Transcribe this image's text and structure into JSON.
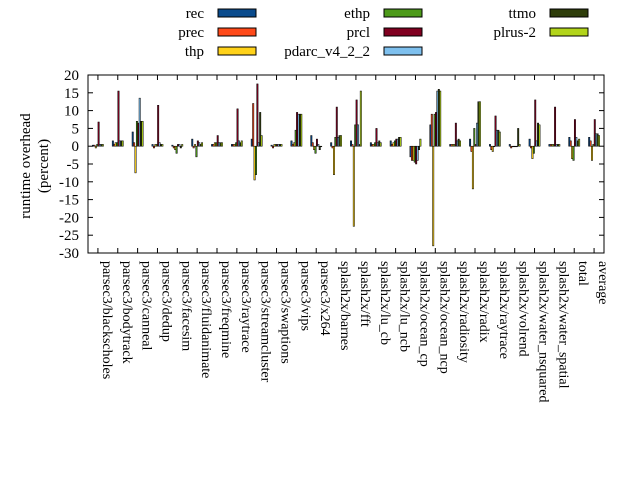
{
  "chart_data": {
    "type": "bar",
    "title": "",
    "xlabel": "",
    "ylabel": "runtime overhead",
    "ylabel_unit": "(percent)",
    "ylim": [
      -30,
      20
    ],
    "yticks": [
      -30,
      -25,
      -20,
      -15,
      -10,
      -5,
      0,
      5,
      10,
      15,
      20
    ],
    "grid": false,
    "legend_position": "top",
    "categories": [
      "parsec3/blackscholes",
      "parsec3/bodytrack",
      "parsec3/canneal",
      "parsec3/dedup",
      "parsec3/facesim",
      "parsec3/fluidanimate",
      "parsec3/freqmine",
      "parsec3/raytrace",
      "parsec3/streamcluster",
      "parsec3/swaptions",
      "parsec3/vips",
      "parsec3/x264",
      "splash2x/barnes",
      "splash2x/fft",
      "splash2x/lu_cb",
      "splash2x/lu_ncb",
      "splash2x/ocean_cp",
      "splash2x/ocean_ncp",
      "splash2x/radiosity",
      "splash2x/radix",
      "splash2x/raytrace",
      "splash2x/volrend",
      "splash2x/water_nsquared",
      "splash2x/water_spatial",
      "total",
      "average"
    ],
    "series": [
      {
        "name": "rec",
        "color": "#0a4b8c",
        "values": [
          0.3,
          1.5,
          4,
          0.5,
          0.3,
          2,
          0.5,
          0.5,
          2,
          0.3,
          1.5,
          3,
          1,
          1.5,
          1,
          1.5,
          -3,
          6,
          0.5,
          2,
          0.5,
          0.5,
          2,
          0.5,
          2.5,
          2.5
        ]
      },
      {
        "name": "prec",
        "color": "#ff4a1a",
        "values": [
          0.3,
          0.5,
          1,
          -0.5,
          -0.5,
          -0.5,
          0.5,
          0.5,
          12,
          -0.5,
          0.5,
          1,
          -0.5,
          0.5,
          0.5,
          0.5,
          -4,
          9,
          0.5,
          -1.5,
          -1,
          -0.5,
          -0.5,
          0.5,
          1.5,
          1.5
        ]
      },
      {
        "name": "thp",
        "color": "#ffd21a",
        "values": [
          -0.5,
          1,
          -7.5,
          0.5,
          -1,
          0.5,
          1,
          0.5,
          -9.5,
          0.5,
          1,
          -1,
          -8,
          -22.5,
          0.5,
          1,
          -4,
          -28,
          0.5,
          -12,
          -1.5,
          0,
          -3.5,
          0.5,
          -3.5,
          -4
        ]
      },
      {
        "name": "ethp",
        "color": "#4d9a1a",
        "values": [
          0.5,
          1,
          7,
          0.5,
          -2,
          -3,
          1,
          1,
          -8,
          0.5,
          4.5,
          -2,
          2.5,
          6,
          1,
          1.5,
          -4.5,
          9,
          0.5,
          5,
          0,
          0,
          -2,
          0.5,
          -4,
          0.5
        ]
      },
      {
        "name": "prcl",
        "color": "#800020",
        "values": [
          6.8,
          15.5,
          6.5,
          11.5,
          0.5,
          1.5,
          3,
          10.5,
          17.5,
          0.5,
          9.5,
          2,
          11,
          13,
          5,
          2,
          -5,
          9.5,
          6.5,
          0.5,
          8.5,
          0,
          13,
          11,
          7.5,
          7.5
        ]
      },
      {
        "name": "pdarc_v4_2_2",
        "color": "#7ec0ee",
        "values": [
          0.5,
          1.5,
          13.5,
          1,
          0.5,
          1,
          1,
          1.5,
          1,
          0.5,
          9,
          0.5,
          2.5,
          6,
          1,
          2,
          -4,
          15.5,
          1.5,
          6.5,
          4.5,
          0,
          1.5,
          0.5,
          2.5,
          3.5
        ]
      },
      {
        "name": "ttmo",
        "color": "#2e3d0a",
        "values": [
          0.5,
          1.5,
          7,
          0.5,
          -0.5,
          0.5,
          1,
          1,
          9.5,
          0.5,
          9,
          -1,
          3,
          0.5,
          1.5,
          2.5,
          -1,
          16,
          2,
          12.5,
          4.5,
          5,
          6.5,
          0.5,
          1.5,
          3.5
        ]
      },
      {
        "name": "plrus-2",
        "color": "#b2d41a",
        "values": [
          0.5,
          1.5,
          7,
          0.5,
          0.5,
          1,
          1,
          1.5,
          3,
          0.5,
          9,
          0,
          3,
          15.5,
          1,
          2.5,
          2,
          15.5,
          1.5,
          12.5,
          4,
          0.5,
          6,
          0.5,
          2,
          3
        ]
      }
    ]
  }
}
